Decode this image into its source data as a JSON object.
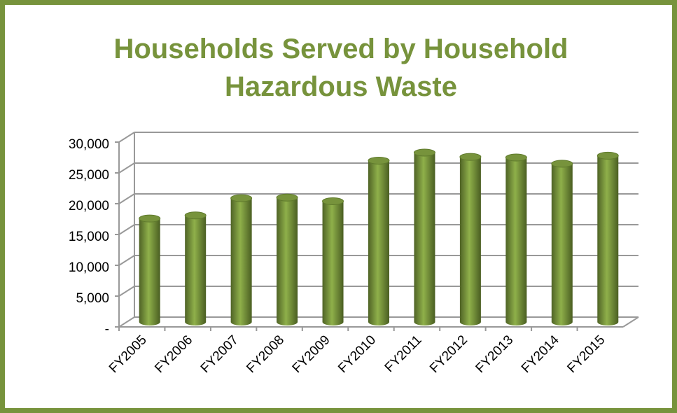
{
  "chart_data": {
    "type": "bar3d",
    "title": "Households Served by Household Hazardous Waste",
    "categories": [
      "FY2005",
      "FY2006",
      "FY2007",
      "FY2008",
      "FY2009",
      "FY2010",
      "FY2011",
      "FY2012",
      "FY2013",
      "FY2014",
      "FY2015"
    ],
    "values": [
      16800,
      17300,
      20100,
      20200,
      19600,
      26200,
      27500,
      26800,
      26700,
      25700,
      27000
    ],
    "color": "#77933c",
    "ylim": [
      0,
      30000
    ],
    "yticks": [
      {
        "value": 0,
        "label": "-"
      },
      {
        "value": 5000,
        "label": "5,000"
      },
      {
        "value": 10000,
        "label": "10,000"
      },
      {
        "value": 15000,
        "label": "15,000"
      },
      {
        "value": 20000,
        "label": "20,000"
      },
      {
        "value": 25000,
        "label": "25,000"
      },
      {
        "value": 30000,
        "label": "30,000"
      }
    ],
    "grid": true
  }
}
